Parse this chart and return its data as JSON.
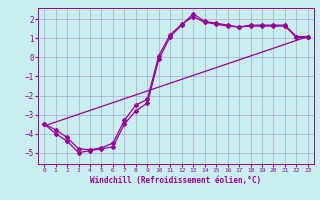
{
  "xlabel": "Windchill (Refroidissement éolien,°C)",
  "bg_color": "#c8eef0",
  "grid_color": "#aaaacc",
  "line_color": "#990099",
  "xlim": [
    -0.5,
    23.5
  ],
  "ylim": [
    -5.6,
    2.6
  ],
  "xticks": [
    0,
    1,
    2,
    3,
    4,
    5,
    6,
    7,
    8,
    9,
    10,
    11,
    12,
    13,
    14,
    15,
    16,
    17,
    18,
    19,
    20,
    21,
    22,
    23
  ],
  "yticks": [
    -5,
    -4,
    -3,
    -2,
    -1,
    0,
    1,
    2
  ],
  "line1_x": [
    0,
    1,
    2,
    3,
    4,
    5,
    6,
    7,
    8,
    9,
    10,
    11,
    12,
    13,
    14,
    15,
    16,
    17,
    18,
    19,
    20,
    21,
    22,
    23
  ],
  "line1_y": [
    -3.5,
    -4.0,
    -4.4,
    -5.0,
    -4.9,
    -4.8,
    -4.7,
    -3.5,
    -2.8,
    -2.4,
    -0.1,
    1.1,
    1.7,
    2.3,
    1.9,
    1.8,
    1.7,
    1.6,
    1.7,
    1.7,
    1.7,
    1.7,
    1.1,
    1.1
  ],
  "line2_x": [
    0,
    23
  ],
  "line2_y": [
    -3.6,
    1.1
  ],
  "line3_x": [
    0,
    1,
    2,
    3,
    4,
    5,
    6,
    7,
    8,
    9,
    10,
    11,
    12,
    13,
    14,
    15,
    16,
    17,
    18,
    19,
    20,
    21,
    22,
    23
  ],
  "line3_y": [
    -3.5,
    -3.8,
    -4.2,
    -4.8,
    -4.85,
    -4.75,
    -4.5,
    -3.3,
    -2.5,
    -2.2,
    0.1,
    1.2,
    1.75,
    2.15,
    1.85,
    1.75,
    1.65,
    1.6,
    1.65,
    1.65,
    1.65,
    1.65,
    1.05,
    1.05
  ]
}
